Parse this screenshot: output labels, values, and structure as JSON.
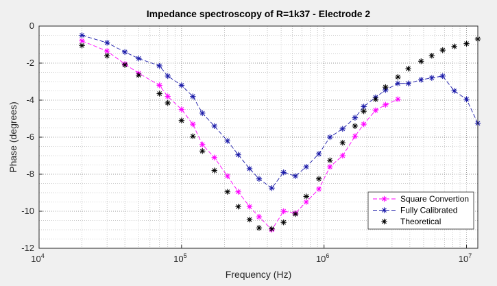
{
  "chart_data": {
    "type": "line",
    "title": "Impedance spectroscopy of R=1k37 - Electrode 2",
    "xlabel": "Frequency (Hz)",
    "ylabel": "Phase (degrees)",
    "x_scale": "log",
    "xlim": [
      10000,
      12000000
    ],
    "ylim": [
      -12,
      0
    ],
    "x_ticks": [
      {
        "value": 10000,
        "base": "10",
        "exp": "4"
      },
      {
        "value": 100000,
        "base": "10",
        "exp": "5"
      },
      {
        "value": 1000000,
        "base": "10",
        "exp": "6"
      },
      {
        "value": 10000000,
        "base": "10",
        "exp": "7"
      }
    ],
    "y_ticks": [
      {
        "value": 0,
        "label": "0"
      },
      {
        "value": -2,
        "label": "-2"
      },
      {
        "value": -4,
        "label": "-4"
      },
      {
        "value": -6,
        "label": "-6"
      },
      {
        "value": -8,
        "label": "-8"
      },
      {
        "value": -10,
        "label": "-10"
      },
      {
        "value": -12,
        "label": "-12"
      }
    ],
    "grid": "major-and-minor-dotted",
    "legend_position": "bottom-right",
    "series": [
      {
        "name": "Square Convertion",
        "color": "#ff00ff",
        "line": "dashed",
        "marker": "asterisk",
        "x": [
          20000,
          30000,
          40000,
          50000,
          70000,
          80000,
          100000,
          120000,
          140000,
          170000,
          210000,
          250000,
          300000,
          350000,
          430000,
          520000,
          630000,
          750000,
          920000,
          1100000,
          1350000,
          1650000,
          1900000,
          2300000,
          2700000,
          3300000
        ],
        "y": [
          -0.8,
          -1.35,
          -2.05,
          -2.55,
          -3.2,
          -3.8,
          -4.5,
          -5.3,
          -6.4,
          -7.1,
          -8.1,
          -8.95,
          -9.75,
          -10.3,
          -11.0,
          -10.0,
          -10.1,
          -9.5,
          -8.8,
          -7.6,
          -7.0,
          -5.95,
          -5.3,
          -4.55,
          -4.25,
          -3.95
        ]
      },
      {
        "name": "Fully Calibrated",
        "color": "#1a1aa8",
        "line": "dashed",
        "marker": "asterisk",
        "x": [
          20000,
          30000,
          40000,
          50000,
          70000,
          80000,
          100000,
          120000,
          140000,
          170000,
          210000,
          250000,
          300000,
          350000,
          430000,
          520000,
          630000,
          750000,
          920000,
          1100000,
          1350000,
          1650000,
          1900000,
          2300000,
          2700000,
          3300000,
          3900000,
          4800000,
          5700000,
          6800000,
          8200000,
          10000000,
          12000000
        ],
        "y": [
          -0.5,
          -0.9,
          -1.4,
          -1.75,
          -2.15,
          -2.7,
          -3.2,
          -3.8,
          -4.7,
          -5.4,
          -6.2,
          -6.95,
          -7.7,
          -8.25,
          -8.75,
          -7.9,
          -8.1,
          -7.6,
          -6.9,
          -6.0,
          -5.55,
          -4.95,
          -4.35,
          -3.85,
          -3.45,
          -3.1,
          -3.1,
          -2.9,
          -2.8,
          -2.7,
          -3.5,
          -3.95,
          -5.25
        ]
      },
      {
        "name": "Theoretical",
        "color": "#000000",
        "line": "none",
        "marker": "asterisk",
        "x": [
          20000,
          30000,
          40000,
          50000,
          70000,
          80000,
          100000,
          120000,
          140000,
          170000,
          210000,
          250000,
          300000,
          350000,
          430000,
          520000,
          630000,
          750000,
          920000,
          1100000,
          1350000,
          1650000,
          1900000,
          2300000,
          2700000,
          3300000,
          3900000,
          4800000,
          5700000,
          6800000,
          8200000,
          10000000,
          12000000
        ],
        "y": [
          -1.05,
          -1.6,
          -2.1,
          -2.65,
          -3.65,
          -4.15,
          -5.1,
          -5.95,
          -6.75,
          -7.8,
          -8.95,
          -9.75,
          -10.45,
          -10.9,
          -10.95,
          -10.6,
          -10.15,
          -9.2,
          -8.25,
          -7.25,
          -6.3,
          -5.4,
          -4.6,
          -3.95,
          -3.3,
          -2.75,
          -2.3,
          -1.9,
          -1.6,
          -1.3,
          -1.1,
          -0.95,
          -0.7
        ]
      }
    ]
  }
}
